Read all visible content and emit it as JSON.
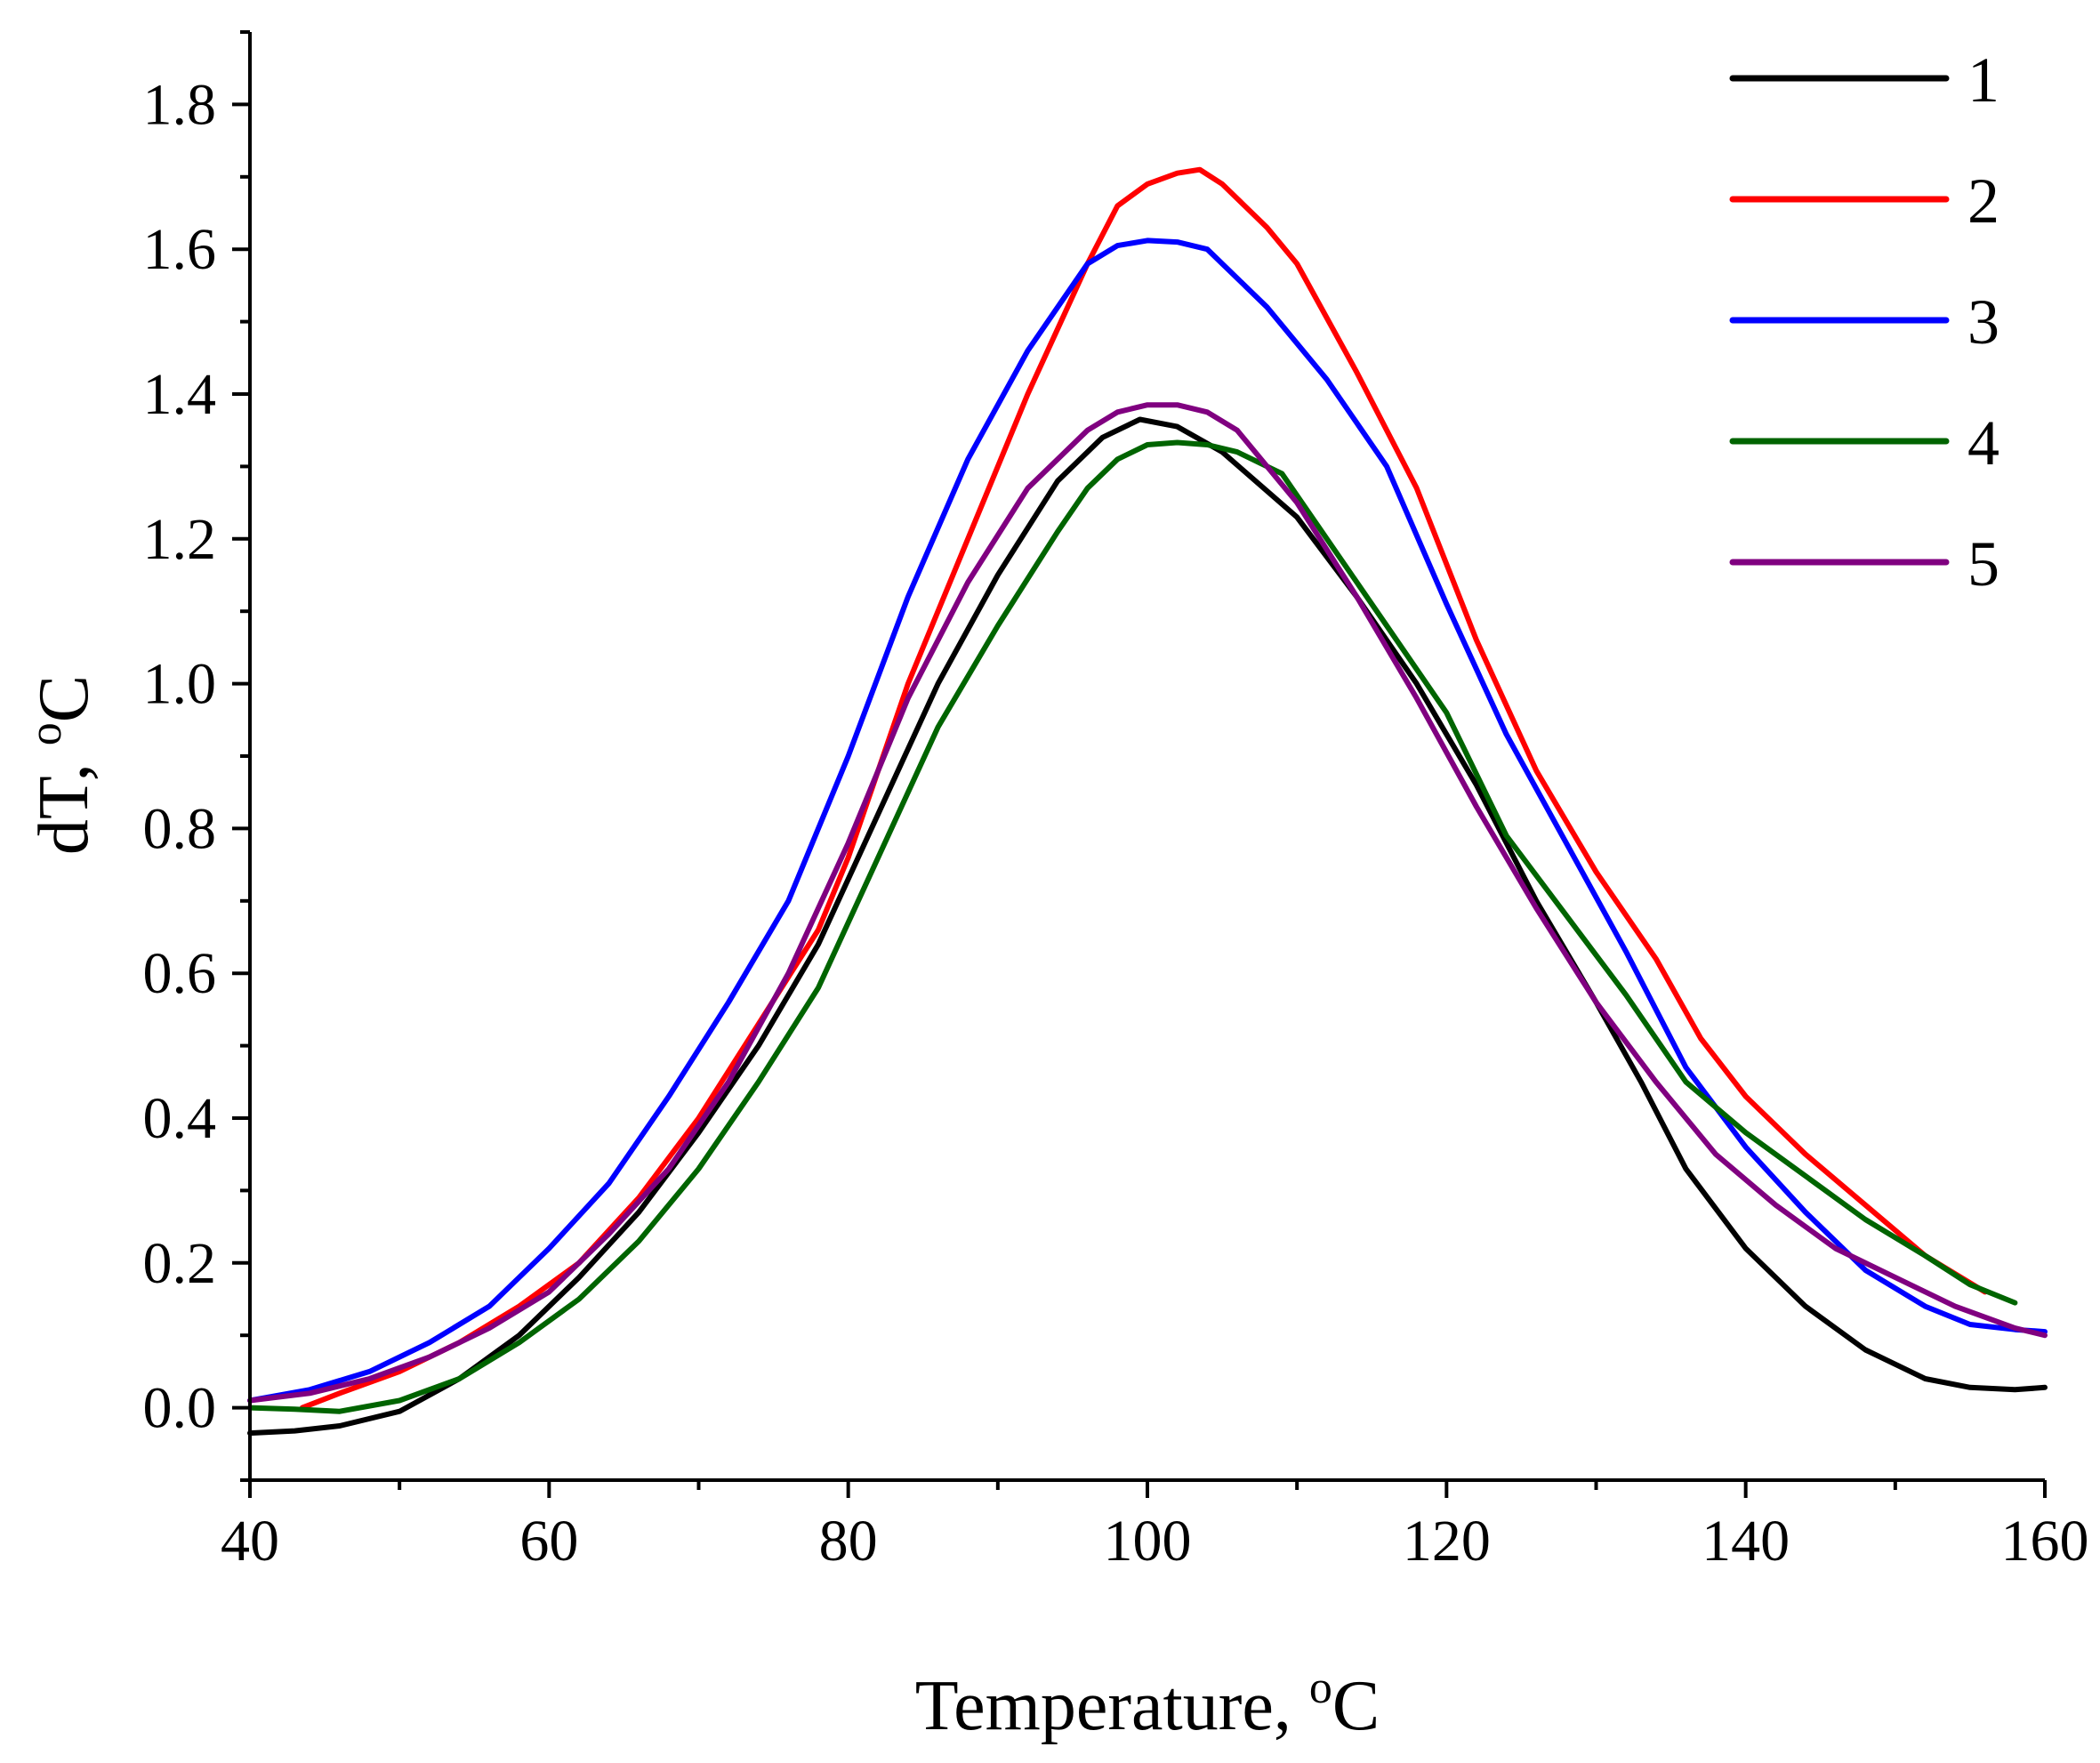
{
  "chart_data": {
    "type": "line",
    "title": "",
    "xlabel": "Temperature, ",
    "xlabel_sup": "o",
    "xlabel_unit": "C",
    "ylabel": "dT, ",
    "ylabel_sup": "o",
    "ylabel_unit": "C",
    "xlim": [
      40,
      160
    ],
    "ylim": [
      -0.1,
      1.9
    ],
    "x_major_ticks": [
      40,
      60,
      80,
      100,
      120,
      140,
      160
    ],
    "x_tick_labels": [
      "40",
      "60",
      "80",
      "100",
      "120",
      "140",
      "160"
    ],
    "x_minor_step": 10,
    "y_major_ticks": [
      0.0,
      0.2,
      0.4,
      0.6,
      0.8,
      1.0,
      1.2,
      1.4,
      1.6,
      1.8
    ],
    "y_tick_labels": [
      "0.0",
      "0.2",
      "0.4",
      "0.6",
      "0.8",
      "1.0",
      "1.2",
      "1.4",
      "1.6",
      "1.8"
    ],
    "y_minor_step": 0.1,
    "grid": false,
    "legend_position": "top-right",
    "series": [
      {
        "name": "1",
        "color": "#000000",
        "points": [
          [
            40,
            -0.035
          ],
          [
            43,
            -0.032
          ],
          [
            46,
            -0.025
          ],
          [
            50,
            -0.005
          ],
          [
            54,
            0.04
          ],
          [
            58,
            0.1
          ],
          [
            62,
            0.18
          ],
          [
            66,
            0.27
          ],
          [
            70,
            0.38
          ],
          [
            74,
            0.5
          ],
          [
            78,
            0.64
          ],
          [
            82,
            0.82
          ],
          [
            86,
            1.0
          ],
          [
            90,
            1.15
          ],
          [
            94,
            1.28
          ],
          [
            97,
            1.34
          ],
          [
            99.5,
            1.365
          ],
          [
            102,
            1.355
          ],
          [
            105,
            1.32
          ],
          [
            110,
            1.23
          ],
          [
            114,
            1.12
          ],
          [
            118,
            1.0
          ],
          [
            122,
            0.86
          ],
          [
            126,
            0.7
          ],
          [
            130,
            0.56
          ],
          [
            133,
            0.45
          ],
          [
            136,
            0.33
          ],
          [
            140,
            0.22
          ],
          [
            144,
            0.14
          ],
          [
            148,
            0.08
          ],
          [
            152,
            0.04
          ],
          [
            155,
            0.028
          ],
          [
            158,
            0.025
          ],
          [
            160,
            0.028
          ]
        ]
      },
      {
        "name": "2",
        "color": "#ff0000",
        "points": [
          [
            43.5,
            0.0
          ],
          [
            46,
            0.02
          ],
          [
            50,
            0.05
          ],
          [
            54,
            0.09
          ],
          [
            58,
            0.14
          ],
          [
            62,
            0.2
          ],
          [
            66,
            0.29
          ],
          [
            70,
            0.4
          ],
          [
            74,
            0.53
          ],
          [
            78,
            0.66
          ],
          [
            80,
            0.76
          ],
          [
            84,
            1.0
          ],
          [
            88,
            1.2
          ],
          [
            92,
            1.4
          ],
          [
            96,
            1.58
          ],
          [
            98,
            1.66
          ],
          [
            100,
            1.69
          ],
          [
            102,
            1.705
          ],
          [
            103.5,
            1.71
          ],
          [
            105,
            1.69
          ],
          [
            108,
            1.63
          ],
          [
            110,
            1.58
          ],
          [
            114,
            1.43
          ],
          [
            118,
            1.27
          ],
          [
            122,
            1.06
          ],
          [
            126,
            0.88
          ],
          [
            130,
            0.74
          ],
          [
            134,
            0.62
          ],
          [
            137,
            0.51
          ],
          [
            140,
            0.43
          ],
          [
            144,
            0.35
          ],
          [
            148,
            0.28
          ],
          [
            152,
            0.21
          ],
          [
            156,
            0.16
          ]
        ]
      },
      {
        "name": "3",
        "color": "#0000ff",
        "points": [
          [
            40,
            0.01
          ],
          [
            44,
            0.025
          ],
          [
            48,
            0.05
          ],
          [
            52,
            0.09
          ],
          [
            56,
            0.14
          ],
          [
            60,
            0.22
          ],
          [
            64,
            0.31
          ],
          [
            68,
            0.43
          ],
          [
            72,
            0.56
          ],
          [
            76,
            0.7
          ],
          [
            80,
            0.9
          ],
          [
            84,
            1.12
          ],
          [
            88,
            1.31
          ],
          [
            92,
            1.46
          ],
          [
            96,
            1.58
          ],
          [
            98,
            1.605
          ],
          [
            100,
            1.612
          ],
          [
            102,
            1.61
          ],
          [
            104,
            1.6
          ],
          [
            108,
            1.52
          ],
          [
            112,
            1.42
          ],
          [
            116,
            1.3
          ],
          [
            120,
            1.11
          ],
          [
            124,
            0.93
          ],
          [
            128,
            0.78
          ],
          [
            132,
            0.63
          ],
          [
            136,
            0.47
          ],
          [
            140,
            0.36
          ],
          [
            144,
            0.27
          ],
          [
            148,
            0.19
          ],
          [
            152,
            0.14
          ],
          [
            155,
            0.115
          ],
          [
            158,
            0.108
          ],
          [
            160,
            0.105
          ]
        ]
      },
      {
        "name": "4",
        "color": "#006400",
        "points": [
          [
            40,
            0.0
          ],
          [
            43,
            -0.002
          ],
          [
            46,
            -0.005
          ],
          [
            50,
            0.01
          ],
          [
            54,
            0.04
          ],
          [
            58,
            0.09
          ],
          [
            62,
            0.15
          ],
          [
            66,
            0.23
          ],
          [
            70,
            0.33
          ],
          [
            74,
            0.45
          ],
          [
            78,
            0.58
          ],
          [
            82,
            0.76
          ],
          [
            86,
            0.94
          ],
          [
            90,
            1.08
          ],
          [
            94,
            1.21
          ],
          [
            96,
            1.27
          ],
          [
            98,
            1.31
          ],
          [
            100,
            1.33
          ],
          [
            102,
            1.333
          ],
          [
            104,
            1.33
          ],
          [
            106,
            1.32
          ],
          [
            109,
            1.29
          ],
          [
            112,
            1.2
          ],
          [
            116,
            1.08
          ],
          [
            120,
            0.96
          ],
          [
            124,
            0.79
          ],
          [
            128,
            0.68
          ],
          [
            132,
            0.57
          ],
          [
            136,
            0.45
          ],
          [
            140,
            0.38
          ],
          [
            144,
            0.32
          ],
          [
            148,
            0.26
          ],
          [
            152,
            0.21
          ],
          [
            155,
            0.17
          ],
          [
            158,
            0.145
          ]
        ]
      },
      {
        "name": "5",
        "color": "#800080",
        "points": [
          [
            40,
            0.01
          ],
          [
            44,
            0.02
          ],
          [
            48,
            0.04
          ],
          [
            52,
            0.07
          ],
          [
            56,
            0.11
          ],
          [
            60,
            0.16
          ],
          [
            64,
            0.24
          ],
          [
            68,
            0.33
          ],
          [
            72,
            0.45
          ],
          [
            76,
            0.6
          ],
          [
            80,
            0.78
          ],
          [
            84,
            0.98
          ],
          [
            88,
            1.14
          ],
          [
            92,
            1.27
          ],
          [
            96,
            1.35
          ],
          [
            98,
            1.375
          ],
          [
            100,
            1.385
          ],
          [
            102,
            1.385
          ],
          [
            104,
            1.375
          ],
          [
            106,
            1.35
          ],
          [
            110,
            1.25
          ],
          [
            114,
            1.12
          ],
          [
            118,
            0.98
          ],
          [
            122,
            0.83
          ],
          [
            126,
            0.69
          ],
          [
            130,
            0.56
          ],
          [
            134,
            0.45
          ],
          [
            138,
            0.35
          ],
          [
            142,
            0.28
          ],
          [
            146,
            0.22
          ],
          [
            150,
            0.18
          ],
          [
            154,
            0.14
          ],
          [
            158,
            0.11
          ],
          [
            160,
            0.1
          ]
        ]
      }
    ]
  }
}
